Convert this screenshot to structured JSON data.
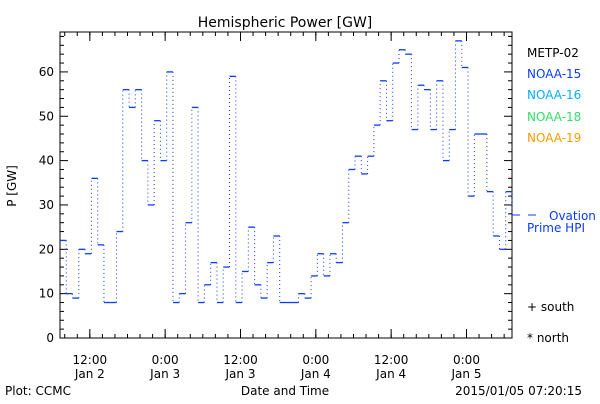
{
  "chart_data": {
    "type": "line",
    "title": "Hemispheric Power [GW]",
    "xlabel": "Date and Time",
    "ylabel": "P [GW]",
    "ylim": [
      0,
      69
    ],
    "xlim_hours": [
      0,
      72
    ],
    "x_origin": "2015-01-02 07:15",
    "step_hours": 1,
    "yticks": [
      0,
      10,
      20,
      30,
      40,
      50,
      60
    ],
    "xticks": [
      {
        "hour": 4.75,
        "time": "12:00",
        "date": "Jan 2"
      },
      {
        "hour": 16.75,
        "time": "0:00",
        "date": "Jan 3"
      },
      {
        "hour": 28.75,
        "time": "12:00",
        "date": "Jan 3"
      },
      {
        "hour": 40.75,
        "time": "0:00",
        "date": "Jan 4"
      },
      {
        "hour": 52.75,
        "time": "12:00",
        "date": "Jan 4"
      },
      {
        "hour": 64.75,
        "time": "0:00",
        "date": "Jan 5"
      }
    ],
    "series": [
      {
        "name": "Ovation Prime HPI",
        "color": "#0a3cff",
        "values": [
          22,
          10,
          9,
          20,
          19,
          36,
          21,
          8,
          8,
          24,
          56,
          52,
          56,
          40,
          30,
          49,
          40,
          60,
          8,
          10,
          26,
          52,
          8,
          12,
          17,
          8,
          16,
          59,
          8,
          15,
          25,
          12,
          9,
          17,
          23,
          8,
          8,
          8,
          10,
          9,
          14,
          19,
          14,
          19,
          17,
          26,
          38,
          41,
          37,
          41,
          48,
          58,
          49,
          62,
          65,
          64,
          47,
          57,
          56,
          47,
          58,
          40,
          47,
          67,
          61,
          32,
          46,
          46,
          33,
          23,
          20,
          33,
          28
        ]
      }
    ],
    "legend": {
      "placement": "right",
      "satellites": [
        {
          "label": "METP-02",
          "color": "#000000"
        },
        {
          "label": "NOAA-15",
          "color": "#0a3cff"
        },
        {
          "label": "NOAA-16",
          "color": "#00b0ff"
        },
        {
          "label": "NOAA-18",
          "color": "#33e066"
        },
        {
          "label": "NOAA-19",
          "color": "#ff9a00"
        }
      ],
      "line_label_1": "Ovation",
      "line_label_2": "Prime HPI",
      "south": "+ south",
      "north": "* north"
    }
  },
  "footer": {
    "left": "Plot: CCMC",
    "right": "2015/01/05 07:20:15"
  }
}
